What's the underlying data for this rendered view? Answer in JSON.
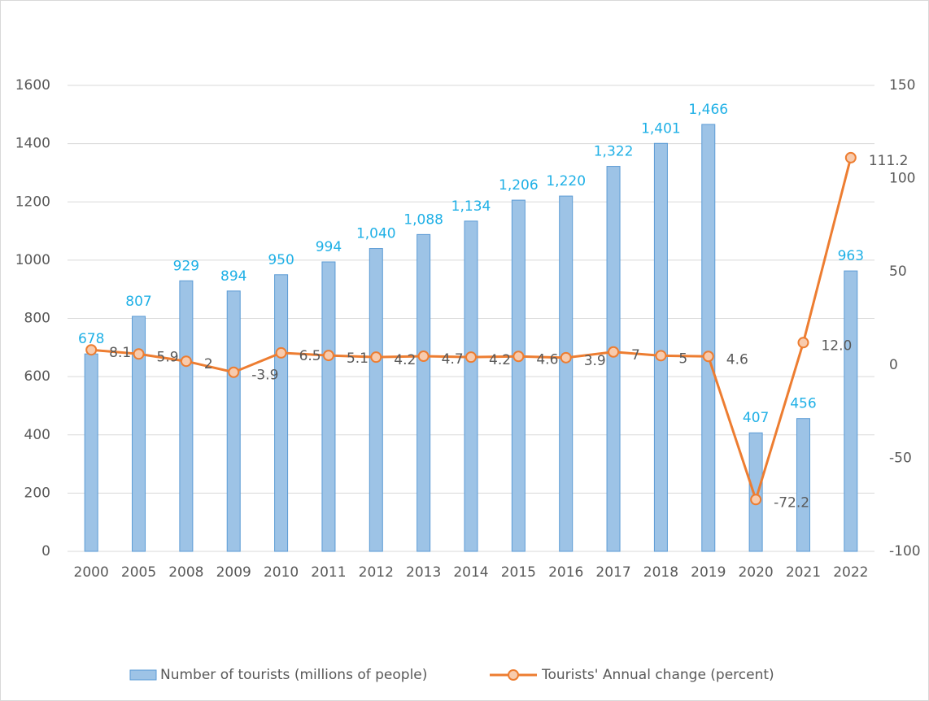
{
  "chart_data": {
    "type": "bar-line",
    "categories": [
      "2000",
      "2005",
      "2008",
      "2009",
      "2010",
      "2011",
      "2012",
      "2013",
      "2014",
      "2015",
      "2016",
      "2017",
      "2018",
      "2019",
      "2020",
      "2021",
      "2022"
    ],
    "series": [
      {
        "name": "Number of tourists (millions of people)",
        "type": "bar",
        "color": "#9dc3e6",
        "values": [
          678,
          807,
          929,
          894,
          950,
          994,
          1040,
          1088,
          1134,
          1206,
          1220,
          1322,
          1401,
          1466,
          407,
          456,
          963
        ],
        "value_labels": [
          "678",
          "807",
          "929",
          "894",
          "950",
          "994",
          "1,040",
          "1,088",
          "1,134",
          "1,206",
          "1,220",
          "1,322",
          "1,401",
          "1,466",
          "407",
          "456",
          "963"
        ]
      },
      {
        "name": "Tourists' Annual change (percent)",
        "type": "line",
        "color": "#ed7d31",
        "axis": "y2",
        "values": [
          8.1,
          5.9,
          2,
          -3.9,
          6.5,
          5.1,
          4.2,
          4.7,
          4.2,
          4.6,
          3.9,
          7,
          5,
          4.6,
          -72.2,
          12.0,
          111.2
        ],
        "value_labels": [
          "8.1",
          "5.9",
          "2",
          "-3.9",
          "6.5",
          "5.1",
          "4.2",
          "4.7",
          "4.2",
          "4.6",
          "3.9",
          "7",
          "5",
          "4.6",
          "-72.2",
          "12.0",
          "111.2"
        ]
      }
    ],
    "ylim": [
      0,
      1600
    ],
    "yticks": [
      0,
      200,
      400,
      600,
      800,
      1000,
      1200,
      1400,
      1600
    ],
    "y2lim": [
      -100,
      150
    ],
    "y2ticks": [
      -100,
      -50,
      0,
      50,
      100,
      150
    ],
    "grid": true,
    "legend": "bottom"
  }
}
